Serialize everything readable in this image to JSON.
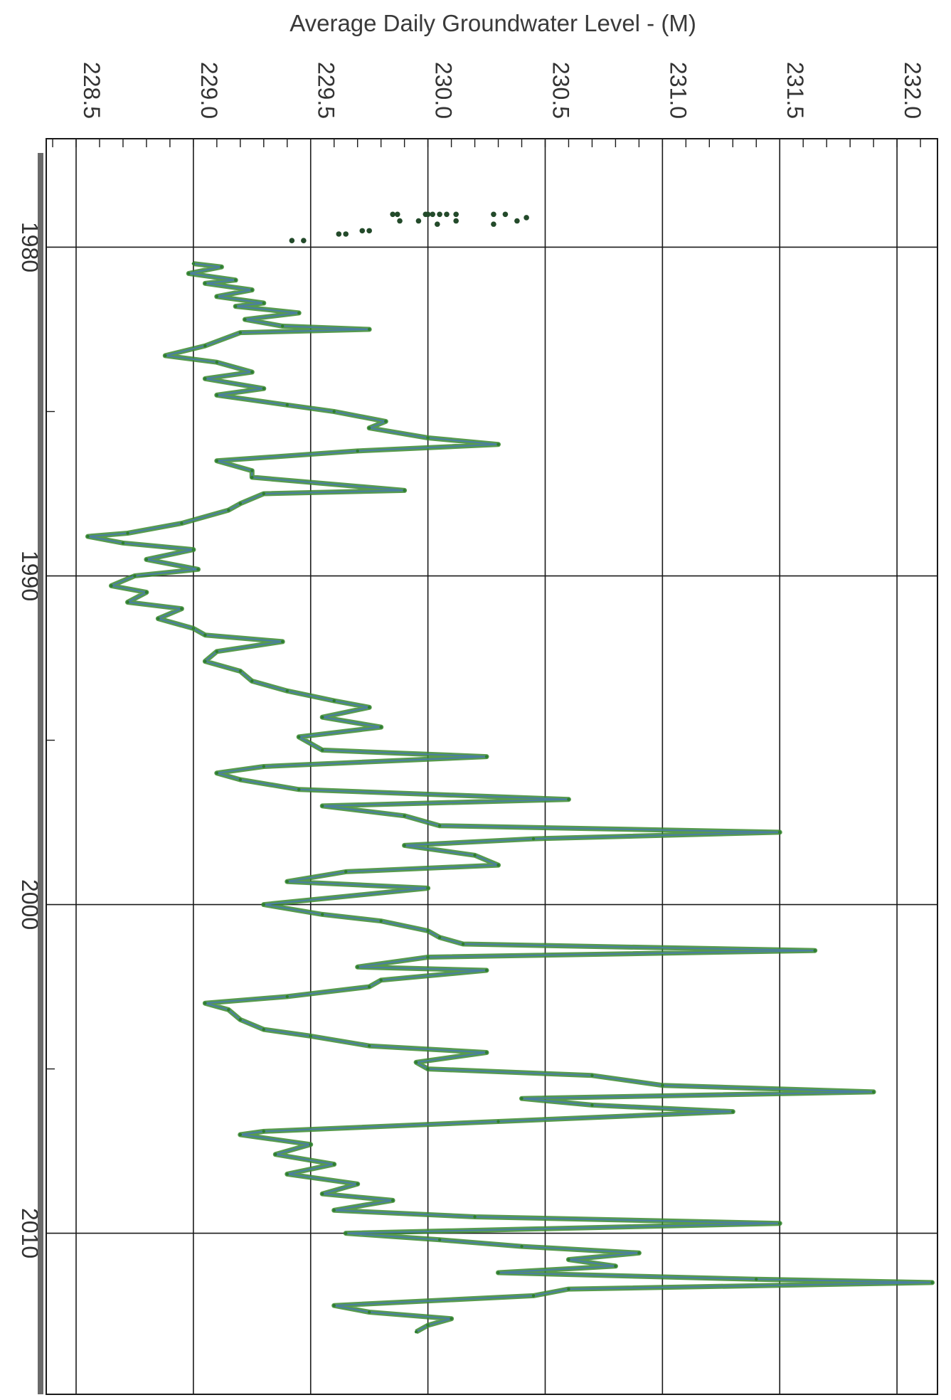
{
  "chart_data": {
    "type": "line",
    "title": "Average Daily Groundwater Level -  (M)",
    "orientation": "rotated-90",
    "value_axis": {
      "label": "Average Daily Groundwater Level -  (M)",
      "range": [
        228.5,
        232.3
      ],
      "ticks": [
        "228.5",
        "229.0",
        "229.5",
        "230.0",
        "230.5",
        "231.0",
        "231.5",
        "232.0"
      ],
      "tick_values": [
        228.5,
        229.0,
        229.5,
        230.0,
        230.5,
        231.0,
        231.5,
        232.0
      ]
    },
    "time_axis": {
      "range": [
        1976.7,
        2014.9
      ],
      "ticks": [
        "1980",
        "1990",
        "2000",
        "2010"
      ],
      "tick_values": [
        1980,
        1990,
        2000,
        2010
      ],
      "minor_ticks": [
        1985,
        1995,
        2005
      ]
    },
    "grid": true,
    "colors": {
      "series": "#2e7d32",
      "series_fill": "#3a8a2e",
      "spike": "#4a7fa0",
      "dots": "#234a2a",
      "frame": "#1a1a1a"
    },
    "series": [
      {
        "kind": "manual-measurements",
        "points": [
          [
            1979.0,
            229.85
          ],
          [
            1979.0,
            229.87
          ],
          [
            1979.0,
            229.99
          ],
          [
            1979.0,
            230.0
          ],
          [
            1979.0,
            230.02
          ],
          [
            1979.0,
            230.05
          ],
          [
            1979.0,
            230.08
          ],
          [
            1979.0,
            230.12
          ],
          [
            1979.0,
            230.28
          ],
          [
            1979.0,
            230.33
          ],
          [
            1979.1,
            230.42
          ],
          [
            1979.2,
            229.88
          ],
          [
            1979.2,
            229.96
          ],
          [
            1979.3,
            230.04
          ],
          [
            1979.2,
            230.12
          ],
          [
            1979.3,
            230.28
          ],
          [
            1979.2,
            230.38
          ],
          [
            1979.6,
            229.62
          ],
          [
            1979.6,
            229.65
          ],
          [
            1979.5,
            229.72
          ],
          [
            1979.5,
            229.75
          ],
          [
            1979.8,
            229.42
          ],
          [
            1979.8,
            229.47
          ]
        ]
      },
      {
        "kind": "daily-average",
        "points": [
          [
            1980.5,
            229.0
          ],
          [
            1980.6,
            229.12
          ],
          [
            1980.8,
            228.98
          ],
          [
            1981.0,
            229.18
          ],
          [
            1981.1,
            229.05
          ],
          [
            1981.3,
            229.25
          ],
          [
            1981.5,
            229.1
          ],
          [
            1981.7,
            229.3
          ],
          [
            1981.8,
            229.18
          ],
          [
            1982.0,
            229.45
          ],
          [
            1982.2,
            229.22
          ],
          [
            1982.4,
            229.38
          ],
          [
            1982.5,
            229.75
          ],
          [
            1982.6,
            229.2
          ],
          [
            1983.0,
            229.05
          ],
          [
            1983.3,
            228.88
          ],
          [
            1983.5,
            229.1
          ],
          [
            1983.8,
            229.25
          ],
          [
            1984.0,
            229.05
          ],
          [
            1984.3,
            229.3
          ],
          [
            1984.5,
            229.1
          ],
          [
            1984.8,
            229.4
          ],
          [
            1985.0,
            229.6
          ],
          [
            1985.3,
            229.82
          ],
          [
            1985.5,
            229.75
          ],
          [
            1985.8,
            230.0
          ],
          [
            1986.0,
            230.3
          ],
          [
            1986.2,
            229.7
          ],
          [
            1986.5,
            229.1
          ],
          [
            1986.8,
            229.25
          ],
          [
            1987.0,
            229.25
          ],
          [
            1987.4,
            229.9
          ],
          [
            1987.5,
            229.3
          ],
          [
            1987.8,
            229.2
          ],
          [
            1988.0,
            229.15
          ],
          [
            1988.4,
            228.95
          ],
          [
            1988.7,
            228.72
          ],
          [
            1988.8,
            228.55
          ],
          [
            1989.0,
            228.7
          ],
          [
            1989.2,
            229.0
          ],
          [
            1989.5,
            228.8
          ],
          [
            1989.8,
            229.02
          ],
          [
            1990.0,
            228.75
          ],
          [
            1990.3,
            228.65
          ],
          [
            1990.5,
            228.8
          ],
          [
            1990.8,
            228.72
          ],
          [
            1991.0,
            228.95
          ],
          [
            1991.3,
            228.85
          ],
          [
            1991.6,
            229.0
          ],
          [
            1991.8,
            229.05
          ],
          [
            1992.0,
            229.38
          ],
          [
            1992.3,
            229.1
          ],
          [
            1992.6,
            229.05
          ],
          [
            1992.9,
            229.2
          ],
          [
            1993.2,
            229.25
          ],
          [
            1993.5,
            229.4
          ],
          [
            1993.8,
            229.6
          ],
          [
            1994.0,
            229.75
          ],
          [
            1994.3,
            229.55
          ],
          [
            1994.6,
            229.8
          ],
          [
            1994.9,
            229.45
          ],
          [
            1995.3,
            229.55
          ],
          [
            1995.5,
            230.25
          ],
          [
            1995.8,
            229.3
          ],
          [
            1996.0,
            229.1
          ],
          [
            1996.2,
            229.2
          ],
          [
            1996.5,
            229.45
          ],
          [
            1996.8,
            230.6
          ],
          [
            1997.0,
            229.55
          ],
          [
            1997.3,
            229.9
          ],
          [
            1997.6,
            230.05
          ],
          [
            1997.8,
            231.5
          ],
          [
            1998.0,
            230.45
          ],
          [
            1998.2,
            229.9
          ],
          [
            1998.5,
            230.2
          ],
          [
            1998.8,
            230.3
          ],
          [
            1999.0,
            229.65
          ],
          [
            1999.3,
            229.4
          ],
          [
            1999.5,
            230.0
          ],
          [
            2000.0,
            229.3
          ],
          [
            2000.3,
            229.55
          ],
          [
            2000.5,
            229.8
          ],
          [
            2000.8,
            230.0
          ],
          [
            2001.0,
            230.05
          ],
          [
            2001.2,
            230.15
          ],
          [
            2001.4,
            231.65
          ],
          [
            2001.6,
            230.0
          ],
          [
            2001.9,
            229.7
          ],
          [
            2002.0,
            230.25
          ],
          [
            2002.3,
            229.8
          ],
          [
            2002.5,
            229.75
          ],
          [
            2002.8,
            229.4
          ],
          [
            2003.0,
            229.05
          ],
          [
            2003.2,
            229.15
          ],
          [
            2003.5,
            229.2
          ],
          [
            2003.8,
            229.3
          ],
          [
            2004.0,
            229.5
          ],
          [
            2004.3,
            229.75
          ],
          [
            2004.5,
            230.25
          ],
          [
            2004.8,
            229.95
          ],
          [
            2005.0,
            230.0
          ],
          [
            2005.2,
            230.7
          ],
          [
            2005.5,
            231.0
          ],
          [
            2005.7,
            231.9
          ],
          [
            2005.9,
            230.4
          ],
          [
            2006.1,
            230.7
          ],
          [
            2006.3,
            231.3
          ],
          [
            2006.6,
            230.3
          ],
          [
            2006.9,
            229.3
          ],
          [
            2007.0,
            229.2
          ],
          [
            2007.3,
            229.5
          ],
          [
            2007.6,
            229.35
          ],
          [
            2007.9,
            229.6
          ],
          [
            2008.2,
            229.4
          ],
          [
            2008.5,
            229.7
          ],
          [
            2008.8,
            229.55
          ],
          [
            2009.0,
            229.85
          ],
          [
            2009.3,
            229.6
          ],
          [
            2009.5,
            230.2
          ],
          [
            2009.7,
            231.5
          ],
          [
            2010.0,
            229.65
          ],
          [
            2010.2,
            230.05
          ],
          [
            2010.4,
            230.4
          ],
          [
            2010.6,
            230.9
          ],
          [
            2010.8,
            230.6
          ],
          [
            2011.0,
            230.8
          ],
          [
            2011.2,
            230.3
          ],
          [
            2011.4,
            231.4
          ],
          [
            2011.5,
            232.15
          ],
          [
            2011.7,
            230.6
          ],
          [
            2011.9,
            230.45
          ],
          [
            2012.2,
            229.6
          ],
          [
            2012.4,
            229.75
          ],
          [
            2012.6,
            230.1
          ],
          [
            2012.8,
            230.0
          ],
          [
            2013.0,
            229.95
          ]
        ]
      }
    ]
  }
}
